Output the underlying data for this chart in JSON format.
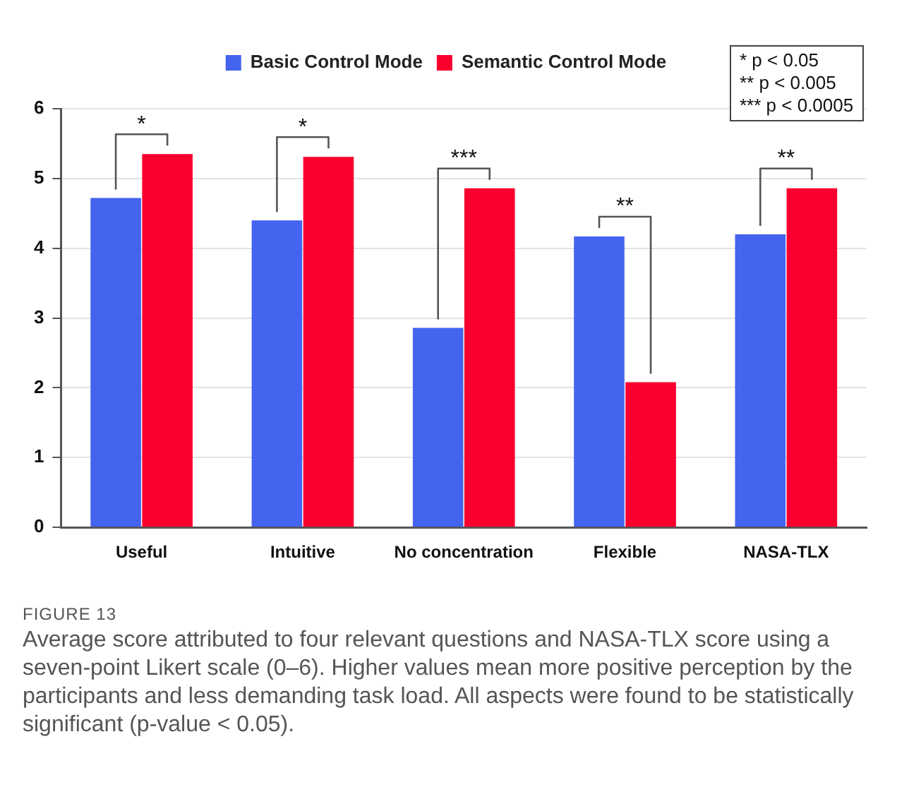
{
  "chart_data": {
    "type": "bar",
    "categories": [
      "Useful",
      "Intuitive",
      "No concentration",
      "Flexible",
      "NASA-TLX"
    ],
    "series": [
      {
        "name": "Basic Control Mode",
        "color": "#4463ee",
        "values": [
          4.72,
          4.4,
          2.86,
          4.17,
          4.2
        ]
      },
      {
        "name": "Semantic Control Mode",
        "color": "#f9002f",
        "values": [
          5.35,
          5.31,
          4.86,
          2.08,
          4.86
        ]
      }
    ],
    "ylim": [
      0,
      6
    ],
    "yticks": [
      0,
      1,
      2,
      3,
      4,
      5,
      6
    ],
    "grid": "y",
    "legend": "top",
    "annotations": [
      "*",
      "*",
      "***",
      "**",
      "**",
      "* p < 0.05",
      "** p < 0.005",
      "*** p < 0.0005",
      "FIGURE 13",
      "Average score attributed to four relevant questions and NASA-TLX score using a seven-point Likert scale (0–6). Higher values mean more positive perception by the participants and less demanding task load. All aspects were found to be statistically significant (p-value  < 0.05)."
    ]
  }
}
